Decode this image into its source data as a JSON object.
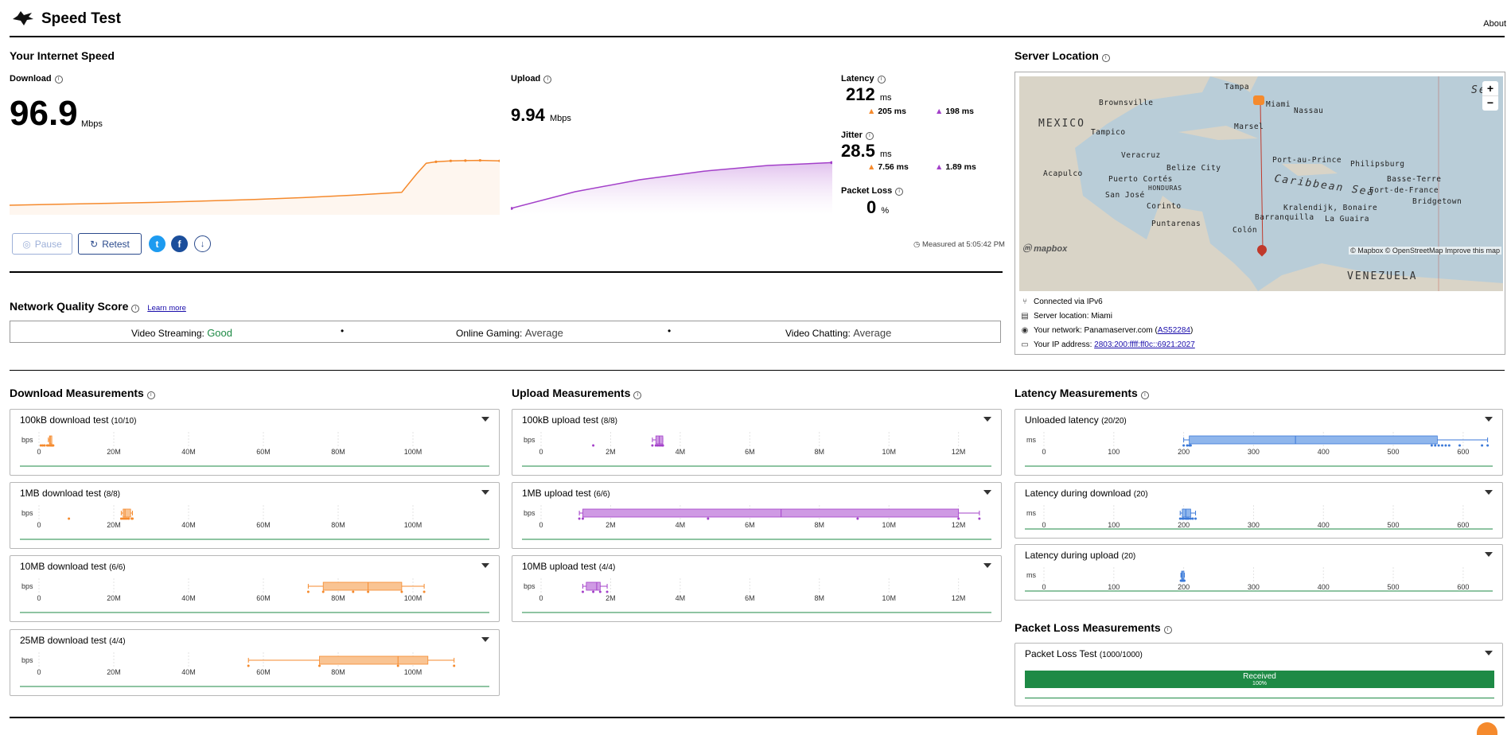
{
  "header": {
    "title": "Speed Test",
    "about": "About"
  },
  "speed": {
    "section_title": "Your Internet Speed",
    "download": {
      "label": "Download",
      "value": "96.9",
      "unit": "Mbps"
    },
    "upload": {
      "label": "Upload",
      "value": "9.94",
      "unit": "Mbps"
    },
    "latency": {
      "label": "Latency",
      "value": "212",
      "unit": "ms",
      "down": "205 ms",
      "up": "198 ms"
    },
    "jitter": {
      "label": "Jitter",
      "value": "28.5",
      "unit": "ms",
      "down": "7.56 ms",
      "up": "1.89 ms"
    },
    "packet_loss": {
      "label": "Packet Loss",
      "value": "0",
      "unit": "%"
    },
    "buttons": {
      "pause": "Pause",
      "retest": "Retest"
    },
    "measured": "Measured at 5:05:42 PM"
  },
  "quality": {
    "title": "Network Quality Score",
    "learn_more": "Learn more",
    "items": [
      {
        "label": "Video Streaming:",
        "value": "Good"
      },
      {
        "label": "Online Gaming:",
        "value": "Average"
      },
      {
        "label": "Video Chatting:",
        "value": "Average"
      }
    ]
  },
  "server": {
    "title": "Server Location",
    "map_labels": {
      "mexico": "MEXICO",
      "venezuela": "VENEZUELA",
      "caribbean": "Caribbean Sea",
      "sea": "Sea",
      "brownsville": "Brownsville",
      "tampa": "Tampa",
      "miami": "Miami",
      "nassau": "Nassau",
      "marsel": "Marsel",
      "tampico": "Tampico",
      "veracruz": "Veracruz",
      "belize": "Belize City",
      "portauprince": "Port-au-Prince",
      "philipsburg": "Philipsburg",
      "acapulco": "Acapulco",
      "puertocortes": "Puerto Cortés",
      "honduras": "HONDURAS",
      "basseterre": "Basse-Terre",
      "fortdefrance": "Fort-de-France",
      "sanjose": "San José",
      "corinto": "Corinto",
      "kralendijk": "Kralendijk, Bonaire",
      "barranquilla": "Barranquilla",
      "laguaira": "La Guaira",
      "bridgetown": "Bridgetown",
      "puntarenas": "Puntarenas",
      "colon": "Colón",
      "attribution": "© Mapbox © OpenStreetMap  Improve this map",
      "logo": "mapbox",
      "zoom_in": "+",
      "zoom_out": "−"
    },
    "connected": "Connected via IPv6",
    "location": "Server location: Miami",
    "network_label": "Your network: Panamaserver.com (",
    "network_asn": "AS52284",
    "network_close": ")",
    "ip_label": "Your IP address:",
    "ip": "2803:200:ffff:ff0c::6921:2027"
  },
  "measurements": {
    "download_title": "Download Measurements",
    "upload_title": "Upload Measurements",
    "latency_title": "Latency Measurements",
    "packet_title": "Packet Loss Measurements",
    "bps": "bps",
    "ms": "ms"
  },
  "colors": {
    "download": "#f58a2d",
    "upload": "#a340c9",
    "latency": "#3b79d8",
    "good": "#1e8a45",
    "received": "#1e8a45"
  },
  "chart_data": [
    {
      "type": "line",
      "title": "Download",
      "unit": "Mbps",
      "x": [
        0,
        0.1,
        0.2,
        0.3,
        0.4,
        0.5,
        0.6,
        0.7,
        0.8,
        0.83,
        0.85,
        0.87,
        0.9,
        0.93,
        0.96,
        1.0
      ],
      "y": [
        0,
        2,
        4,
        6,
        9,
        12,
        16,
        21,
        27,
        65,
        88,
        91,
        93,
        93.5,
        94,
        93
      ]
    },
    {
      "type": "area",
      "title": "Upload",
      "unit": "Mbps",
      "x": [
        0,
        0.2,
        0.4,
        0.6,
        0.8,
        1.0
      ],
      "y": [
        0,
        3.5,
        6,
        7.8,
        9,
        9.6
      ]
    },
    {
      "type": "box",
      "title": "100kB download test",
      "count": "(10/10)",
      "unit": "bps",
      "ticks": [
        "0",
        "20M",
        "40M",
        "60M",
        "80M",
        "100M"
      ],
      "xlim": [
        0,
        120
      ],
      "box": [
        2.5,
        2.8,
        3.0,
        3.2,
        3.4
      ],
      "points": [
        0.5,
        1.0,
        1.5,
        2.2,
        2.6,
        3.0,
        3.3,
        3.5,
        3.6,
        3.8
      ]
    },
    {
      "type": "box",
      "title": "1MB download test",
      "count": "(8/8)",
      "unit": "bps",
      "ticks": [
        "0",
        "20M",
        "40M",
        "60M",
        "80M",
        "100M"
      ],
      "xlim": [
        0,
        120
      ],
      "box": [
        22,
        22.5,
        23,
        24.5,
        25
      ],
      "points": [
        8,
        22,
        22.5,
        23,
        23.5,
        24,
        24.8,
        25
      ]
    },
    {
      "type": "box",
      "title": "10MB download test",
      "count": "(6/6)",
      "unit": "bps",
      "ticks": [
        "0",
        "20M",
        "40M",
        "60M",
        "80M",
        "100M"
      ],
      "xlim": [
        0,
        120
      ],
      "box": [
        72,
        76,
        88,
        97,
        103
      ],
      "points": [
        72,
        76,
        84,
        88,
        97,
        103
      ]
    },
    {
      "type": "box",
      "title": "25MB download test",
      "count": "(4/4)",
      "unit": "bps",
      "ticks": [
        "0",
        "20M",
        "40M",
        "60M",
        "80M",
        "100M"
      ],
      "xlim": [
        0,
        120
      ],
      "box": [
        56,
        75,
        96,
        104,
        111
      ],
      "points": [
        56,
        75,
        96,
        111
      ]
    },
    {
      "type": "box",
      "title": "100kB upload test",
      "count": "(8/8)",
      "unit": "bps",
      "ticks": [
        "0",
        "2M",
        "4M",
        "6M",
        "8M",
        "10M",
        "12M"
      ],
      "xlim": [
        0,
        12.9
      ],
      "box": [
        3.2,
        3.3,
        3.4,
        3.5,
        3.5
      ],
      "points": [
        1.5,
        3.2,
        3.3,
        3.35,
        3.4,
        3.45,
        3.5,
        3.5
      ]
    },
    {
      "type": "box",
      "title": "1MB upload test",
      "count": "(6/6)",
      "unit": "bps",
      "ticks": [
        "0",
        "2M",
        "4M",
        "6M",
        "8M",
        "10M",
        "12M"
      ],
      "xlim": [
        0,
        12.9
      ],
      "box": [
        1.1,
        1.2,
        6.9,
        12.0,
        12.6
      ],
      "points": [
        1.1,
        1.2,
        4.8,
        9.1,
        12.0,
        12.6
      ]
    },
    {
      "type": "box",
      "title": "10MB upload test",
      "count": "(4/4)",
      "unit": "bps",
      "ticks": [
        "0",
        "2M",
        "4M",
        "6M",
        "8M",
        "10M",
        "12M"
      ],
      "xlim": [
        0,
        12.9
      ],
      "box": [
        1.2,
        1.3,
        1.6,
        1.7,
        1.9
      ],
      "points": [
        1.2,
        1.5,
        1.7,
        1.9
      ]
    },
    {
      "type": "box",
      "title": "Unloaded latency",
      "count": "(20/20)",
      "unit": "ms",
      "ticks": [
        "0",
        "100",
        "200",
        "300",
        "400",
        "500",
        "600"
      ],
      "xlim": [
        0,
        640
      ],
      "box": [
        200,
        208,
        360,
        563,
        635
      ],
      "points": [
        200,
        205,
        208,
        210,
        555,
        560,
        565,
        570,
        575,
        580,
        595,
        627,
        635
      ]
    },
    {
      "type": "box",
      "title": "Latency during download",
      "count": "(20)",
      "unit": "ms",
      "ticks": [
        "0",
        "100",
        "200",
        "300",
        "400",
        "500",
        "600"
      ],
      "xlim": [
        0,
        640
      ],
      "box": [
        195,
        198,
        203,
        210,
        217
      ],
      "points": [
        195,
        198,
        200,
        203,
        205,
        207,
        210,
        213,
        217
      ]
    },
    {
      "type": "box",
      "title": "Latency during upload",
      "count": "(20)",
      "unit": "ms",
      "ticks": [
        "0",
        "100",
        "200",
        "300",
        "400",
        "500",
        "600"
      ],
      "xlim": [
        0,
        640
      ],
      "box": [
        196,
        197,
        198,
        200,
        201
      ],
      "points": [
        196,
        197,
        198,
        199,
        200,
        201
      ]
    }
  ],
  "packet_loss_test": {
    "title": "Packet Loss Test",
    "count": "(1000/1000)",
    "received_label": "Received",
    "received_pct": "100%",
    "received_fraction": 1.0
  }
}
